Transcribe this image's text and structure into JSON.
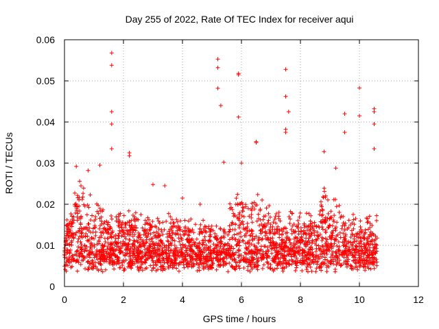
{
  "chart_data": {
    "type": "scatter",
    "title": "Day 255 of 2022, Rate Of TEC Index for receiver aqui",
    "xlabel": "GPS time / hours",
    "ylabel": "ROTI / TECUs",
    "xlim": [
      0,
      12
    ],
    "ylim": [
      0,
      0.06
    ],
    "xticks": [
      0,
      2,
      4,
      6,
      8,
      10,
      12
    ],
    "yticks": [
      0,
      0.01,
      0.02,
      0.03,
      0.04,
      0.05,
      0.06
    ],
    "xtick_labels": [
      "0",
      "2",
      "4",
      "6",
      "8",
      "10",
      "12"
    ],
    "ytick_labels": [
      "0",
      "0.01",
      "0.02",
      "0.03",
      "0.04",
      "0.05",
      "0.06"
    ],
    "grid": true,
    "marker": "+",
    "color": "#ff0000",
    "series": [
      {
        "x_range": [
          0.0,
          10.6
        ],
        "sample_points": [
          [
            1.6,
            0.0568
          ],
          [
            1.6,
            0.0538
          ],
          [
            1.6,
            0.0425
          ],
          [
            1.6,
            0.0395
          ],
          [
            1.6,
            0.0335
          ],
          [
            2.2,
            0.0325
          ],
          [
            2.2,
            0.0318
          ],
          [
            0.4,
            0.0292
          ],
          [
            0.8,
            0.0282
          ],
          [
            1.2,
            0.0295
          ],
          [
            5.2,
            0.0553
          ],
          [
            5.2,
            0.0532
          ],
          [
            5.2,
            0.0482
          ],
          [
            5.3,
            0.044
          ],
          [
            5.9,
            0.0518
          ],
          [
            5.9,
            0.0515
          ],
          [
            5.9,
            0.0412
          ],
          [
            6.5,
            0.0352
          ],
          [
            6.5,
            0.035
          ],
          [
            5.4,
            0.0302
          ],
          [
            7.5,
            0.0528
          ],
          [
            7.5,
            0.0462
          ],
          [
            7.6,
            0.0425
          ],
          [
            7.5,
            0.0382
          ],
          [
            7.5,
            0.0375
          ],
          [
            9.5,
            0.042
          ],
          [
            9.5,
            0.0375
          ],
          [
            10.0,
            0.0483
          ],
          [
            10.0,
            0.0415
          ],
          [
            10.5,
            0.0432
          ],
          [
            10.5,
            0.0425
          ],
          [
            10.5,
            0.0395
          ],
          [
            10.5,
            0.0335
          ],
          [
            8.8,
            0.0328
          ],
          [
            9.2,
            0.0288
          ],
          [
            3.0,
            0.0248
          ],
          [
            3.4,
            0.0245
          ],
          [
            4.0,
            0.0215
          ],
          [
            4.6,
            0.02
          ],
          [
            6.0,
            0.03
          ]
        ]
      }
    ]
  }
}
